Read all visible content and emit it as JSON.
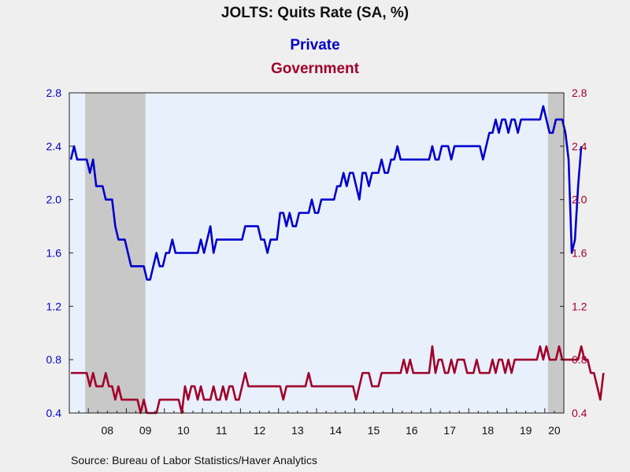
{
  "chart_data": {
    "type": "line",
    "title": "JOLTS: Quits Rate (SA, %)",
    "source": "Source:  Bureau of Labor Statistics/Haver Analytics",
    "colors": {
      "private": "#0000cc",
      "government": "#a0002a",
      "plot_background": "#e8f0fc",
      "recession_shading": "#c8c8c8",
      "page_background": "#efefef"
    },
    "left_axis": {
      "ylim": [
        0.4,
        2.8
      ],
      "ticks": [
        "0.4",
        "0.8",
        "1.2",
        "1.6",
        "2.0",
        "2.4",
        "2.8"
      ],
      "color": "#0000cc"
    },
    "right_axis": {
      "ylim": [
        0.4,
        2.8
      ],
      "ticks": [
        "0.4",
        "0.8",
        "1.2",
        "1.6",
        "2.0",
        "2.4",
        "2.8"
      ],
      "color": "#a0002a"
    },
    "x_axis": {
      "start": "2007-07",
      "end": "2020-06",
      "tick_labels": [
        "08",
        "09",
        "10",
        "11",
        "12",
        "13",
        "14",
        "15",
        "16",
        "17",
        "18",
        "19",
        "20"
      ]
    },
    "recessions": [
      {
        "start": "2007-12",
        "end": "2009-06"
      },
      {
        "start": "2020-02",
        "end": "2020-06"
      }
    ],
    "series": [
      {
        "name": "Private",
        "axis": "left",
        "values": [
          2.3,
          2.4,
          2.3,
          2.3,
          2.3,
          2.3,
          2.2,
          2.3,
          2.1,
          2.1,
          2.1,
          2.0,
          2.0,
          2.0,
          1.8,
          1.7,
          1.7,
          1.7,
          1.6,
          1.5,
          1.5,
          1.5,
          1.5,
          1.5,
          1.4,
          1.4,
          1.5,
          1.6,
          1.5,
          1.5,
          1.6,
          1.6,
          1.7,
          1.6,
          1.6,
          1.6,
          1.6,
          1.6,
          1.6,
          1.6,
          1.6,
          1.7,
          1.6,
          1.7,
          1.8,
          1.6,
          1.7,
          1.7,
          1.7,
          1.7,
          1.7,
          1.7,
          1.7,
          1.7,
          1.7,
          1.8,
          1.8,
          1.8,
          1.8,
          1.8,
          1.7,
          1.7,
          1.6,
          1.7,
          1.7,
          1.7,
          1.9,
          1.9,
          1.8,
          1.9,
          1.8,
          1.8,
          1.9,
          1.9,
          1.9,
          1.9,
          2.0,
          1.9,
          1.9,
          2.0,
          2.0,
          2.0,
          2.0,
          2.0,
          2.1,
          2.1,
          2.2,
          2.1,
          2.2,
          2.2,
          2.1,
          2.0,
          2.2,
          2.2,
          2.1,
          2.2,
          2.2,
          2.2,
          2.3,
          2.2,
          2.2,
          2.3,
          2.3,
          2.4,
          2.3,
          2.3,
          2.3,
          2.3,
          2.3,
          2.3,
          2.3,
          2.3,
          2.3,
          2.3,
          2.4,
          2.3,
          2.3,
          2.4,
          2.4,
          2.4,
          2.3,
          2.4,
          2.4,
          2.4,
          2.4,
          2.4,
          2.4,
          2.4,
          2.4,
          2.4,
          2.3,
          2.4,
          2.5,
          2.5,
          2.6,
          2.5,
          2.6,
          2.6,
          2.5,
          2.6,
          2.6,
          2.5,
          2.6,
          2.6,
          2.6,
          2.6,
          2.6,
          2.6,
          2.6,
          2.7,
          2.6,
          2.5,
          2.5,
          2.6,
          2.6,
          2.6,
          2.5,
          2.3,
          1.6,
          1.7,
          2.1,
          2.4
        ]
      },
      {
        "name": "Government",
        "axis": "right",
        "values": [
          0.7,
          0.7,
          0.7,
          0.7,
          0.7,
          0.7,
          0.6,
          0.7,
          0.6,
          0.6,
          0.6,
          0.7,
          0.6,
          0.6,
          0.5,
          0.6,
          0.5,
          0.5,
          0.5,
          0.5,
          0.5,
          0.5,
          0.4,
          0.5,
          0.4,
          0.4,
          0.4,
          0.4,
          0.5,
          0.5,
          0.5,
          0.5,
          0.5,
          0.5,
          0.5,
          0.4,
          0.6,
          0.5,
          0.6,
          0.6,
          0.5,
          0.6,
          0.5,
          0.5,
          0.5,
          0.6,
          0.5,
          0.5,
          0.6,
          0.5,
          0.6,
          0.6,
          0.5,
          0.5,
          0.6,
          0.7,
          0.6,
          0.6,
          0.6,
          0.6,
          0.6,
          0.6,
          0.6,
          0.6,
          0.6,
          0.6,
          0.6,
          0.5,
          0.6,
          0.6,
          0.6,
          0.6,
          0.6,
          0.6,
          0.6,
          0.7,
          0.6,
          0.6,
          0.6,
          0.6,
          0.6,
          0.6,
          0.6,
          0.6,
          0.6,
          0.6,
          0.6,
          0.6,
          0.6,
          0.6,
          0.5,
          0.6,
          0.7,
          0.7,
          0.7,
          0.6,
          0.6,
          0.6,
          0.7,
          0.7,
          0.7,
          0.7,
          0.7,
          0.7,
          0.7,
          0.8,
          0.7,
          0.8,
          0.7,
          0.7,
          0.7,
          0.7,
          0.7,
          0.7,
          0.9,
          0.7,
          0.8,
          0.8,
          0.7,
          0.7,
          0.8,
          0.7,
          0.8,
          0.8,
          0.8,
          0.7,
          0.7,
          0.7,
          0.8,
          0.7,
          0.7,
          0.7,
          0.7,
          0.8,
          0.7,
          0.8,
          0.8,
          0.7,
          0.8,
          0.7,
          0.8,
          0.8,
          0.8,
          0.8,
          0.8,
          0.8,
          0.8,
          0.8,
          0.9,
          0.8,
          0.9,
          0.8,
          0.8,
          0.8,
          0.9,
          0.8,
          0.8,
          0.8,
          0.8,
          0.8,
          0.8,
          0.9,
          0.8,
          0.8,
          0.7,
          0.7,
          0.6,
          0.5,
          0.7
        ]
      }
    ],
    "grid": false,
    "legend_placement": "top-center"
  }
}
